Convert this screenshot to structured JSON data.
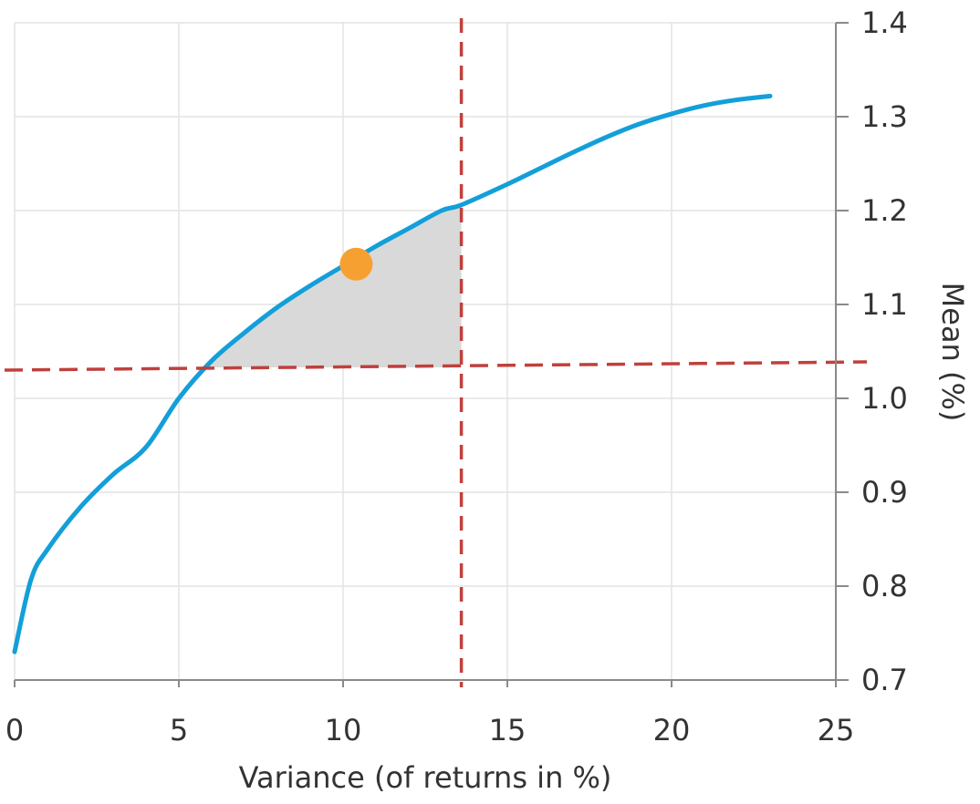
{
  "chart_data": {
    "type": "line",
    "xlabel": "Variance (of returns in %)",
    "ylabel": "Mean (%)",
    "xlim": [
      0,
      25
    ],
    "ylim": [
      0.7,
      1.4
    ],
    "x_ticks": [
      "0",
      "5",
      "10",
      "15",
      "20",
      "25"
    ],
    "y_ticks": [
      "0.7",
      "0.8",
      "0.9",
      "1.0",
      "1.1",
      "1.2",
      "1.3",
      "1.4"
    ],
    "y_axis_side": "right",
    "grid": true,
    "series": [
      {
        "x": [
          0,
          0.5,
          1,
          2,
          3,
          4,
          5,
          6,
          7,
          8,
          9,
          10,
          11,
          12,
          13,
          13.6,
          15,
          16,
          17,
          18,
          19,
          20,
          21,
          22,
          23
        ],
        "y": [
          0.73,
          0.807,
          0.839,
          0.884,
          0.919,
          0.948,
          1.0,
          1.04,
          1.07,
          1.097,
          1.12,
          1.141,
          1.162,
          1.181,
          1.2,
          1.206,
          1.228,
          1.245,
          1.262,
          1.278,
          1.292,
          1.303,
          1.312,
          1.318,
          1.322
        ],
        "color": "#139fd9"
      }
    ],
    "highlight_point": {
      "x": 10.4,
      "y": 1.143,
      "color": "#f7a032"
    },
    "reference_lines": [
      {
        "orientation": "vertical",
        "x": 13.6,
        "color": "#c0403c",
        "style": "dashed"
      },
      {
        "orientation": "horizontal",
        "y": 1.033,
        "color": "#c0403c",
        "style": "dashed"
      }
    ],
    "shaded_region": {
      "description_x_range": [
        5.6,
        13.6
      ],
      "y_floor": 1.033,
      "color": "#d9d9d9"
    },
    "colors": {
      "grid": "#e3e3e3",
      "axis": "#8a8a8a",
      "text": "#333333"
    }
  }
}
